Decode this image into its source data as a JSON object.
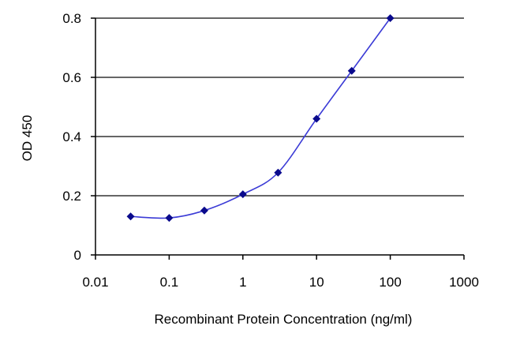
{
  "chart_data": {
    "type": "line",
    "title": "",
    "xlabel": "Recombinant Protein Concentration (ng/ml)",
    "ylabel": "OD 450",
    "x_scale": "log",
    "xlim": [
      0.01,
      1000
    ],
    "ylim": [
      0,
      0.8
    ],
    "x_ticks": [
      0.01,
      0.1,
      1,
      10,
      100,
      1000
    ],
    "x_tick_labels": [
      "0.01",
      "0.1",
      "1",
      "10",
      "100",
      "1000"
    ],
    "y_ticks": [
      0,
      0.2,
      0.4,
      0.6,
      0.8
    ],
    "y_tick_labels": [
      "0",
      "0.2",
      "0.4",
      "0.6",
      "0.8"
    ],
    "grid": "horizontal",
    "series": [
      {
        "x": [
          0.03,
          0.1,
          0.3,
          1,
          3,
          10,
          30,
          100
        ],
        "y": [
          0.13,
          0.125,
          0.15,
          0.205,
          0.278,
          0.46,
          0.622,
          0.8
        ]
      }
    ],
    "colors": {
      "line": "#3b3bd6",
      "marker": "#0a0a8c",
      "grid": "#333333",
      "axis": "#000000"
    }
  }
}
